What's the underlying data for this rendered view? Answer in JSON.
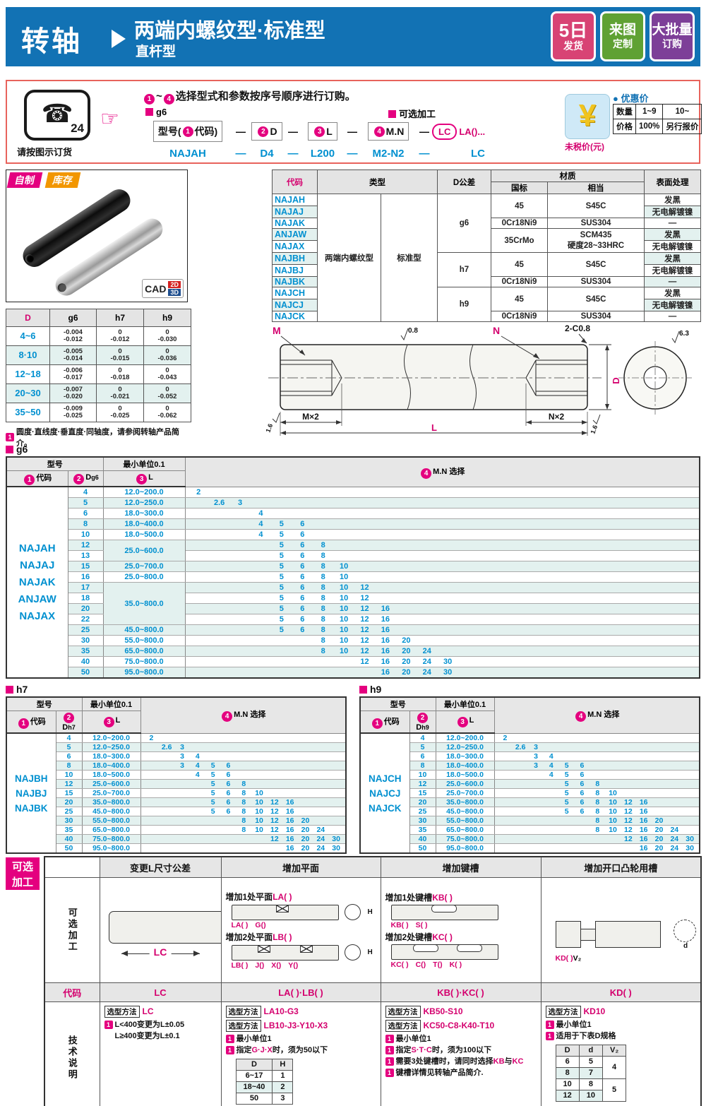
{
  "header": {
    "product": "转轴",
    "title": "两端内螺纹型·标准型",
    "subtitle": "直杆型",
    "badges": [
      {
        "line1": "5日",
        "line2": "发货",
        "color": "#d84374"
      },
      {
        "line1": "来图",
        "line2": "定制",
        "color": "#5fa133"
      },
      {
        "line1": "大批量",
        "line2": "订购",
        "color": "#7d3f98"
      }
    ]
  },
  "order": {
    "phone_number": "24",
    "phone_glyph": "☎",
    "hand_glyph": "☞",
    "phone_caption": "请按图示订货",
    "inst_from": "1",
    "inst_sep": "~",
    "inst_to": "4",
    "inst_text": "选择型式和参数按序号顺序进行订购。",
    "g6_tag": "g6",
    "optional_tag": "可选加工",
    "dash": "—",
    "boxes": [
      {
        "num": "1",
        "pre": "型号(",
        "post": "代码)"
      },
      {
        "num": "2",
        "pre": "",
        "post": "D"
      },
      {
        "num": "3",
        "pre": "",
        "post": "L"
      },
      {
        "num": "4",
        "pre": "",
        "post": "M.N"
      }
    ],
    "lc_label": "LC",
    "la_label": "LA()...",
    "example": [
      "NAJAH",
      "D4",
      "L200",
      "M2-N2",
      "LC"
    ]
  },
  "price": {
    "icon": "¥",
    "untaxed": "未税价(元)",
    "dot": "●",
    "title": "优惠价",
    "qty_label": "数量",
    "qty_ranges": [
      "1~9",
      "10~"
    ],
    "price_label": "价格",
    "price_values": [
      "100%",
      "另行报价"
    ]
  },
  "photo": {
    "badge_self": "自制",
    "badge_stock": "库存",
    "cad": "CAD",
    "cad_2d": "2D",
    "cad_3d": "3D"
  },
  "materials": {
    "h_code": "代码",
    "h_type": "类型",
    "h_dtol": "D公差",
    "h_material": "材质",
    "h_gb": "国标",
    "h_equiv": "相当",
    "h_surface": "表面处理",
    "type_main": "两端内螺纹型",
    "type_sub": "标准型",
    "codes": [
      "NAJAH",
      "NAJAJ",
      "NAJAK",
      "ANJAW",
      "NAJAX",
      "NAJBH",
      "NAJBJ",
      "NAJBK",
      "NAJCH",
      "NAJCJ",
      "NAJCK"
    ],
    "dtol_groups": [
      {
        "label": "g6",
        "span": 5
      },
      {
        "label": "h7",
        "span": 3
      },
      {
        "label": "h9",
        "span": 3
      }
    ],
    "gb_groups": [
      {
        "label": "45",
        "span": 2
      },
      {
        "label": "0Cr18Ni9",
        "span": 1
      },
      {
        "label": "35CrMo",
        "span": 2
      },
      {
        "label": "45",
        "span": 2
      },
      {
        "label": "0Cr18Ni9",
        "span": 1
      },
      {
        "label": "45",
        "span": 2
      },
      {
        "label": "0Cr18Ni9",
        "span": 1
      }
    ],
    "equiv_groups": [
      {
        "label": "S45C",
        "span": 2
      },
      {
        "label": "SUS304",
        "span": 1
      },
      {
        "label": "SCM435",
        "label2": "硬度28~33HRC",
        "span": 2
      },
      {
        "label": "S45C",
        "span": 2
      },
      {
        "label": "SUS304",
        "span": 1
      },
      {
        "label": "S45C",
        "span": 2
      },
      {
        "label": "SUS304",
        "span": 1
      }
    ],
    "surface": [
      "发黑",
      "无电解镀镍",
      "—",
      "发黑",
      "无电解镀镍",
      "发黑",
      "无电解镀镍",
      "—",
      "发黑",
      "无电解镀镍",
      "—"
    ]
  },
  "dtol": {
    "headers": [
      "D",
      "g6",
      "h7",
      "h9"
    ],
    "rows": [
      {
        "d": "4~6",
        "g6": [
          "-0.004",
          "-0.012"
        ],
        "h7": [
          "0",
          "-0.012"
        ],
        "h9": [
          "0",
          "-0.030"
        ]
      },
      {
        "d": "8·10",
        "g6": [
          "-0.005",
          "-0.014"
        ],
        "h7": [
          "0",
          "-0.015"
        ],
        "h9": [
          "0",
          "-0.036"
        ]
      },
      {
        "d": "12~18",
        "g6": [
          "-0.006",
          "-0.017"
        ],
        "h7": [
          "0",
          "-0.018"
        ],
        "h9": [
          "0",
          "-0.043"
        ]
      },
      {
        "d": "20~30",
        "g6": [
          "-0.007",
          "-0.020"
        ],
        "h7": [
          "0",
          "-0.021"
        ],
        "h9": [
          "0",
          "-0.052"
        ]
      },
      {
        "d": "35~50",
        "g6": [
          "-0.009",
          "-0.025"
        ],
        "h7": [
          "0",
          "-0.025"
        ],
        "h9": [
          "0",
          "-0.062"
        ]
      }
    ],
    "note": "圆度·直线度·垂直度·同轴度，请参阅转轴产品简介。"
  },
  "drawing": {
    "m": "M",
    "n": "N",
    "chamfer": "2-C0.8",
    "rough_top": "0.8",
    "rough_corner": "6.3",
    "rough_end_left": "1.6",
    "rough_end_right": "1.6",
    "mx2": "M×2",
    "nx2": "N×2",
    "len": "L",
    "dia": "D"
  },
  "size_tables": {
    "mn_columns": [
      "2",
      "2.6",
      "3",
      "4",
      "5",
      "6",
      "8",
      "10",
      "12",
      "16",
      "20",
      "24",
      "30"
    ],
    "h_model": "型号",
    "h_code": "代码",
    "h_min_unit": "最小单位0.1",
    "h_l": "L",
    "h_mn": "M.N 选择",
    "sections": [
      {
        "tag": "g6",
        "d_label": "Dg6",
        "models": [
          "NAJAH",
          "NAJAJ",
          "NAJAK",
          "ANJAW",
          "NAJAX"
        ],
        "rows": [
          {
            "d": "4",
            "l": "12.0~200.0",
            "lspan": 1,
            "mn": [
              "2"
            ]
          },
          {
            "d": "5",
            "l": "12.0~250.0",
            "lspan": 1,
            "mn": [
              "2.6",
              "3"
            ]
          },
          {
            "d": "6",
            "l": "18.0~300.0",
            "lspan": 1,
            "mn": [
              "4"
            ]
          },
          {
            "d": "8",
            "l": "18.0~400.0",
            "lspan": 1,
            "mn": [
              "4",
              "5",
              "6"
            ]
          },
          {
            "d": "10",
            "l": "18.0~500.0",
            "lspan": 1,
            "mn": [
              "4",
              "5",
              "6"
            ]
          },
          {
            "d": "12",
            "l": "25.0~600.0",
            "lspan": 2,
            "mn": [
              "5",
              "6",
              "8"
            ]
          },
          {
            "d": "13",
            "mn": [
              "5",
              "6",
              "8"
            ]
          },
          {
            "d": "15",
            "l": "25.0~700.0",
            "lspan": 1,
            "mn": [
              "5",
              "6",
              "8",
              "10"
            ]
          },
          {
            "d": "16",
            "l": "25.0~800.0",
            "lspan": 1,
            "mn": [
              "5",
              "6",
              "8",
              "10"
            ]
          },
          {
            "d": "17",
            "l": "35.0~800.0",
            "lspan": 4,
            "mn": [
              "5",
              "6",
              "8",
              "10",
              "12"
            ]
          },
          {
            "d": "18",
            "mn": [
              "5",
              "6",
              "8",
              "10",
              "12"
            ]
          },
          {
            "d": "20",
            "mn": [
              "5",
              "6",
              "8",
              "10",
              "12",
              "16"
            ]
          },
          {
            "d": "22",
            "mn": [
              "5",
              "6",
              "8",
              "10",
              "12",
              "16"
            ]
          },
          {
            "d": "25",
            "l": "45.0~800.0",
            "lspan": 1,
            "mn": [
              "5",
              "6",
              "8",
              "10",
              "12",
              "16"
            ]
          },
          {
            "d": "30",
            "l": "55.0~800.0",
            "lspan": 1,
            "mn": [
              "8",
              "10",
              "12",
              "16",
              "20"
            ]
          },
          {
            "d": "35",
            "l": "65.0~800.0",
            "lspan": 1,
            "mn": [
              "8",
              "10",
              "12",
              "16",
              "20",
              "24"
            ]
          },
          {
            "d": "40",
            "l": "75.0~800.0",
            "lspan": 1,
            "mn": [
              "12",
              "16",
              "20",
              "24",
              "30"
            ]
          },
          {
            "d": "50",
            "l": "95.0~800.0",
            "lspan": 1,
            "mn": [
              "16",
              "20",
              "24",
              "30"
            ]
          }
        ]
      },
      {
        "tag": "h7",
        "d_label": "Dh7",
        "models": [
          "NAJBH",
          "NAJBJ",
          "NAJBK"
        ],
        "rows": [
          {
            "d": "4",
            "l": "12.0~200.0",
            "lspan": 1,
            "mn": [
              "2"
            ]
          },
          {
            "d": "5",
            "l": "12.0~250.0",
            "lspan": 1,
            "mn": [
              "2.6",
              "3"
            ]
          },
          {
            "d": "6",
            "l": "18.0~300.0",
            "lspan": 1,
            "mn": [
              "3",
              "4"
            ]
          },
          {
            "d": "8",
            "l": "18.0~400.0",
            "lspan": 1,
            "mn": [
              "3",
              "4",
              "5",
              "6"
            ]
          },
          {
            "d": "10",
            "l": "18.0~500.0",
            "lspan": 1,
            "mn": [
              "4",
              "5",
              "6"
            ]
          },
          {
            "d": "12",
            "l": "25.0~600.0",
            "lspan": 1,
            "mn": [
              "5",
              "6",
              "8"
            ]
          },
          {
            "d": "15",
            "l": "25.0~700.0",
            "lspan": 1,
            "mn": [
              "5",
              "6",
              "8",
              "10"
            ]
          },
          {
            "d": "20",
            "l": "35.0~800.0",
            "lspan": 1,
            "mn": [
              "5",
              "6",
              "8",
              "10",
              "12",
              "16"
            ]
          },
          {
            "d": "25",
            "l": "45.0~800.0",
            "lspan": 1,
            "mn": [
              "5",
              "6",
              "8",
              "10",
              "12",
              "16"
            ]
          },
          {
            "d": "30",
            "l": "55.0~800.0",
            "lspan": 1,
            "mn": [
              "8",
              "10",
              "12",
              "16",
              "20"
            ]
          },
          {
            "d": "35",
            "l": "65.0~800.0",
            "lspan": 1,
            "mn": [
              "8",
              "10",
              "12",
              "16",
              "20",
              "24"
            ]
          },
          {
            "d": "40",
            "l": "75.0~800.0",
            "lspan": 1,
            "mn": [
              "12",
              "16",
              "20",
              "24",
              "30"
            ]
          },
          {
            "d": "50",
            "l": "95.0~800.0",
            "lspan": 1,
            "mn": [
              "16",
              "20",
              "24",
              "30"
            ]
          }
        ]
      },
      {
        "tag": "h9",
        "d_label": "Dh9",
        "models": [
          "NAJCH",
          "NAJCJ",
          "NAJCK"
        ],
        "rows": [
          {
            "d": "4",
            "l": "12.0~200.0",
            "lspan": 1,
            "mn": [
              "2"
            ]
          },
          {
            "d": "5",
            "l": "12.0~250.0",
            "lspan": 1,
            "mn": [
              "2.6",
              "3"
            ]
          },
          {
            "d": "6",
            "l": "18.0~300.0",
            "lspan": 1,
            "mn": [
              "3",
              "4"
            ]
          },
          {
            "d": "8",
            "l": "18.0~400.0",
            "lspan": 1,
            "mn": [
              "3",
              "4",
              "5",
              "6"
            ]
          },
          {
            "d": "10",
            "l": "18.0~500.0",
            "lspan": 1,
            "mn": [
              "4",
              "5",
              "6"
            ]
          },
          {
            "d": "12",
            "l": "25.0~600.0",
            "lspan": 1,
            "mn": [
              "5",
              "6",
              "8"
            ]
          },
          {
            "d": "15",
            "l": "25.0~700.0",
            "lspan": 1,
            "mn": [
              "5",
              "6",
              "8",
              "10"
            ]
          },
          {
            "d": "20",
            "l": "35.0~800.0",
            "lspan": 1,
            "mn": [
              "5",
              "6",
              "8",
              "10",
              "12",
              "16"
            ]
          },
          {
            "d": "25",
            "l": "45.0~800.0",
            "lspan": 1,
            "mn": [
              "5",
              "6",
              "8",
              "10",
              "12",
              "16"
            ]
          },
          {
            "d": "30",
            "l": "55.0~800.0",
            "lspan": 1,
            "mn": [
              "8",
              "10",
              "12",
              "16",
              "20"
            ]
          },
          {
            "d": "35",
            "l": "65.0~800.0",
            "lspan": 1,
            "mn": [
              "8",
              "10",
              "12",
              "16",
              "20",
              "24"
            ]
          },
          {
            "d": "40",
            "l": "75.0~800.0",
            "lspan": 1,
            "mn": [
              "12",
              "16",
              "20",
              "24",
              "30"
            ]
          },
          {
            "d": "50",
            "l": "95.0~800.0",
            "lspan": 1,
            "mn": [
              "16",
              "20",
              "24",
              "30"
            ]
          }
        ]
      }
    ]
  },
  "optional": {
    "badge": "可选加工",
    "row_process": "可选加工",
    "row_code": "代码",
    "row_tech": "技术说明",
    "headers": [
      "变更L尺寸公差",
      "增加平面",
      "增加键槽",
      "增加开口凸轮用槽"
    ],
    "codes": [
      "LC",
      "LA( )·LB( )",
      "KB( )·KC( )",
      "KD( )"
    ],
    "method_label": "选型方法",
    "diagrams": {
      "lc": {
        "dim": "LC"
      },
      "la": {
        "title": [
          {
            "t": "增加1处平面"
          },
          {
            "t": "LA( )",
            "m": true
          }
        ],
        "labels": [
          "LA( )",
          "G()"
        ],
        "side": "H"
      },
      "lb": {
        "title": [
          {
            "t": "增加2处平面"
          },
          {
            "t": "LB( )",
            "m": true
          }
        ],
        "labels": [
          "LB( )",
          "J()",
          "X()",
          "Y()"
        ],
        "side": "H"
      },
      "kb": {
        "title": [
          {
            "t": "增加1处键槽"
          },
          {
            "t": "KB( )",
            "m": true
          }
        ],
        "labels": [
          "KB( )",
          "S( )"
        ]
      },
      "kc": {
        "title": [
          {
            "t": "增加2处键槽"
          },
          {
            "t": "KC( )",
            "m": true
          }
        ],
        "labels": [
          "KC( )",
          "C()",
          "T()",
          "K( )"
        ]
      },
      "kd": {
        "labels": [
          "KD( )",
          "V₂"
        ],
        "side": "d"
      }
    },
    "tech": [
      {
        "methods": [
          "LC"
        ],
        "notes": [
          {
            "icon": true,
            "seg": [
              {
                "t": "L<400变更为L±0.05"
              }
            ]
          },
          {
            "icon": false,
            "seg": [
              {
                "t": "L≥400变更为L±0.1"
              }
            ]
          }
        ]
      },
      {
        "methods": [
          "LA10-G3",
          "LB10-J3-Y10-X3"
        ],
        "notes": [
          {
            "icon": true,
            "seg": [
              {
                "t": "最小单位1"
              }
            ]
          },
          {
            "icon": true,
            "seg": [
              {
                "t": "指定"
              },
              {
                "t": "G·J·X",
                "m": true
              },
              {
                "t": "时，须为50以下"
              }
            ]
          }
        ],
        "table": {
          "headers": [
            "D",
            "H"
          ],
          "rows": [
            [
              "6~17",
              "1"
            ],
            [
              "18~40",
              "2"
            ],
            [
              "50",
              "3"
            ]
          ]
        }
      },
      {
        "methods": [
          "KB50-S10",
          "KC50-C8-K40-T10"
        ],
        "notes": [
          {
            "icon": true,
            "seg": [
              {
                "t": "最小单位1"
              }
            ]
          },
          {
            "icon": true,
            "seg": [
              {
                "t": "指定"
              },
              {
                "t": "S·T·C",
                "m": true
              },
              {
                "t": "时，须为100以下"
              }
            ]
          },
          {
            "icon": true,
            "seg": [
              {
                "t": "需要3处键槽时，请同时选择"
              },
              {
                "t": "KB",
                "m": true
              },
              {
                "t": "与"
              },
              {
                "t": "KC",
                "m": true
              }
            ]
          },
          {
            "icon": true,
            "seg": [
              {
                "t": "键槽详情见转轴产品简介."
              }
            ]
          }
        ]
      },
      {
        "methods": [
          "KD10"
        ],
        "notes": [
          {
            "icon": true,
            "seg": [
              {
                "t": "最小单位1"
              }
            ]
          },
          {
            "icon": true,
            "seg": [
              {
                "t": "适用于下表D规格"
              }
            ]
          }
        ],
        "kd_table": {
          "headers": [
            "D",
            "d",
            "V₂"
          ],
          "rows": [
            [
              "6",
              "5"
            ],
            [
              "8",
              "7"
            ],
            [
              "10",
              "8"
            ],
            [
              "12",
              "10"
            ]
          ],
          "v2": [
            {
              "label": "4",
              "span": 2
            },
            {
              "label": "5",
              "span": 2
            }
          ]
        }
      }
    ]
  }
}
